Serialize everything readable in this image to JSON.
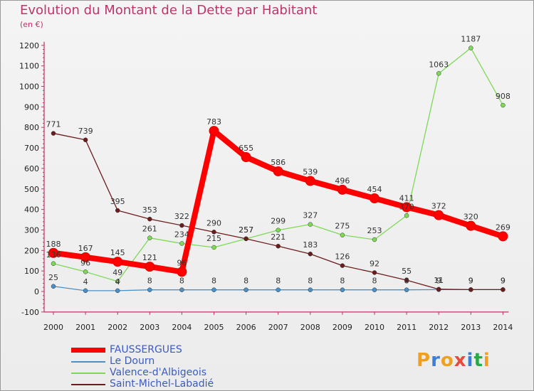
{
  "chart_data": {
    "type": "line",
    "title": "Evolution du Montant de la Dette par Habitant",
    "unit_label": "(en €)",
    "x": [
      "2000",
      "2001",
      "2002",
      "2003",
      "2004",
      "2005",
      "2006",
      "2007",
      "2008",
      "2009",
      "2010",
      "2011",
      "2012",
      "2013",
      "2014"
    ],
    "ylim": [
      -100,
      1200
    ],
    "yticks": [
      "-100",
      "0",
      "100",
      "200",
      "300",
      "400",
      "500",
      "600",
      "700",
      "800",
      "900",
      "1000",
      "1100",
      "1200"
    ],
    "grid": false,
    "legend_position": "bottom-left",
    "series": [
      {
        "name": "FAUSSERGUES",
        "color": "#ff0000",
        "values": [
          188,
          167,
          145,
          121,
          96,
          783,
          655,
          586,
          539,
          496,
          454,
          411,
          372,
          320,
          269
        ],
        "labels": [
          "188",
          "167",
          "145",
          "121",
          "96",
          "783",
          "655",
          "586",
          "539",
          "496",
          "454",
          "411",
          "372",
          "320",
          "269"
        ]
      },
      {
        "name": "Le Dourn",
        "color": "#4a90c8",
        "values": [
          25,
          4,
          4,
          8,
          8,
          8,
          8,
          8,
          8,
          8,
          8,
          8,
          9,
          9,
          9
        ],
        "labels": [
          "25",
          "4",
          "4",
          "8",
          "8",
          "8",
          "8",
          "8",
          "8",
          "8",
          "8",
          "8",
          "9",
          "9",
          "9"
        ]
      },
      {
        "name": "Valence-d'Albigeois",
        "color": "#7ed957",
        "values": [
          136,
          96,
          49,
          261,
          234,
          215,
          257,
          299,
          327,
          275,
          253,
          370,
          1063,
          1187,
          908
        ],
        "labels": [
          "136",
          "96",
          "49",
          "261",
          "234",
          "215",
          "257",
          "299",
          "327",
          "275",
          "253",
          "370",
          "1063",
          "1187",
          "908"
        ]
      },
      {
        "name": "Saint-Michel-Labadié",
        "color": "#6b1c1c",
        "values": [
          771,
          739,
          395,
          353,
          322,
          290,
          257,
          221,
          183,
          126,
          92,
          55,
          11,
          9,
          9
        ],
        "labels": [
          "771",
          "739",
          "395",
          "353",
          "322",
          "290",
          "257",
          "221",
          "183",
          "126",
          "92",
          "55",
          "11",
          "9",
          "9"
        ]
      }
    ]
  },
  "logo": {
    "text": "Proxiti",
    "colors": [
      "#f0a020",
      "#3a7fd5",
      "#f0a020",
      "#e84b3c",
      "#3a7fd5",
      "#2aa84a",
      "#f0a020"
    ]
  }
}
